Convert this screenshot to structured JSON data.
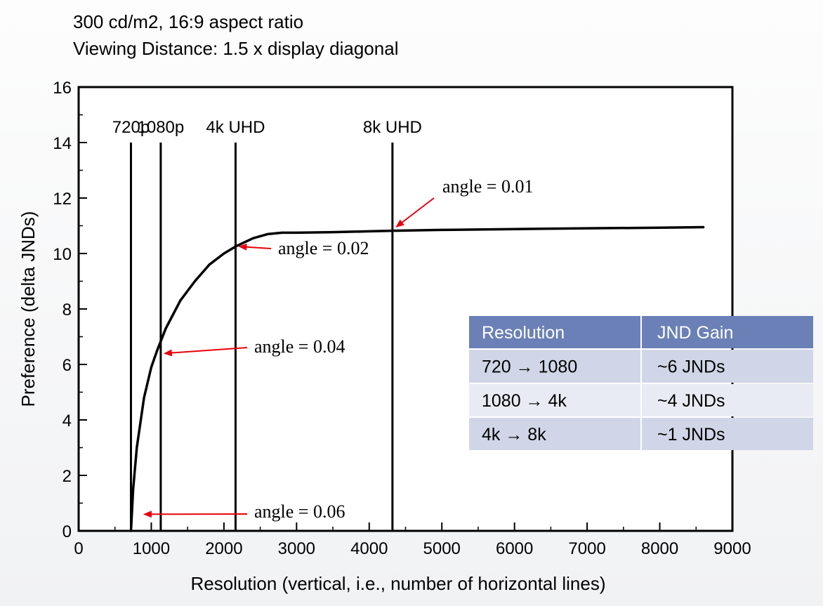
{
  "chart_data": {
    "type": "line",
    "title": "300 cd/m2, 16:9 aspect ratio",
    "subtitle": "Viewing Distance: 1.5 x display diagonal",
    "xlabel": "Resolution (vertical, i.e., number of horizontal lines)",
    "ylabel": "Preference (delta JNDs)",
    "xlim": [
      0,
      9000
    ],
    "ylim": [
      0,
      16
    ],
    "x_ticks": [
      "0",
      "1000",
      "2000",
      "3000",
      "4000",
      "5000",
      "6000",
      "7000",
      "8000",
      "9000"
    ],
    "y_ticks": [
      "0",
      "2",
      "4",
      "6",
      "8",
      "10",
      "12",
      "14",
      "16"
    ],
    "grid": false,
    "series": [
      {
        "x": [
          720,
          750,
          800,
          900,
          1000,
          1080,
          1200,
          1400,
          1600,
          1800,
          2000,
          2160,
          2400,
          2600,
          2800,
          3000,
          3500,
          4000,
          4320,
          5000,
          6000,
          7000,
          8000,
          8600
        ],
        "y": [
          0,
          1.5,
          3.0,
          4.8,
          5.9,
          6.5,
          7.3,
          8.3,
          9.0,
          9.6,
          10.0,
          10.25,
          10.55,
          10.7,
          10.75,
          10.75,
          10.77,
          10.8,
          10.82,
          10.85,
          10.88,
          10.91,
          10.93,
          10.95
        ]
      }
    ],
    "reference_lines": [
      {
        "label": "720p",
        "x": 720
      },
      {
        "label": "1080p",
        "x": 1130
      },
      {
        "label": "4k UHD",
        "x": 2160
      },
      {
        "label": "8k UHD",
        "x": 4320
      }
    ],
    "annotations": [
      {
        "text": "angle = 0.01",
        "x": 4320,
        "y": 10.82
      },
      {
        "text": "angle = 0.02",
        "x": 2160,
        "y": 10.25
      },
      {
        "text": "angle = 0.04",
        "x": 1130,
        "y": 6.4
      },
      {
        "text": "angle = 0.06",
        "x": 850,
        "y": 0.6
      }
    ],
    "arrow_color": "#e8000b",
    "line_color": "#000000"
  },
  "table": {
    "headers": [
      "Resolution",
      "JND Gain"
    ],
    "rows": [
      [
        "720 → 1080",
        "~6 JNDs"
      ],
      [
        "1080 → 4k",
        "~4 JNDs"
      ],
      [
        "4k → 8k",
        "~1 JNDs"
      ]
    ],
    "header_color": "#6a80b6",
    "row_colors": [
      "#d0d6e7",
      "#e8ebf3",
      "#d0d6e7"
    ]
  }
}
